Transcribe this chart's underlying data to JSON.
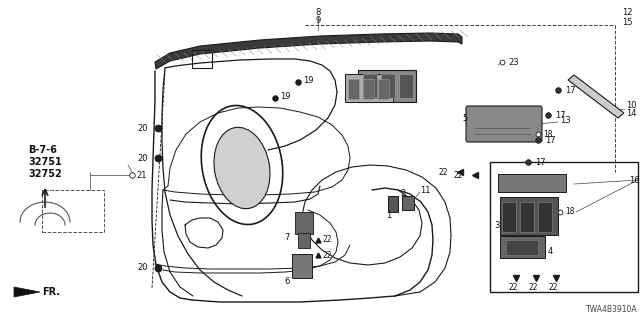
{
  "bg_color": "#ffffff",
  "line_color": "#2a2a2a",
  "text_color": "#111111",
  "fig_width": 6.4,
  "fig_height": 3.2,
  "diagram_code": "TWA4B3910A"
}
